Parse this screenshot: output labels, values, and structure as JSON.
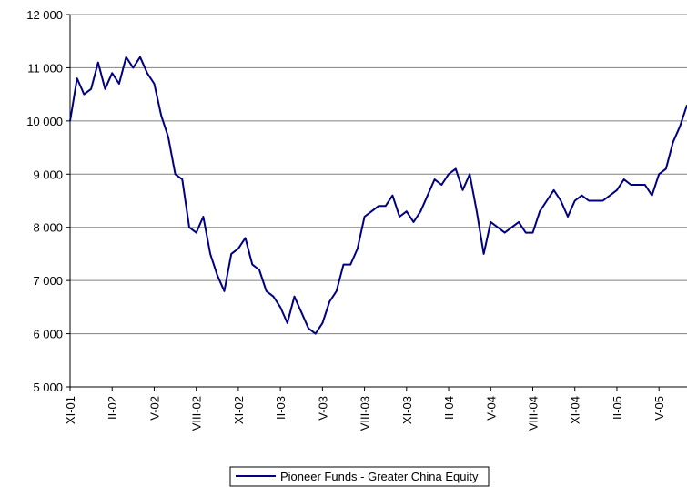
{
  "chart_data": {
    "type": "line",
    "categories": [
      "XI-01",
      null,
      null,
      null,
      null,
      null,
      "II-02",
      null,
      null,
      null,
      null,
      null,
      "V-02",
      null,
      null,
      null,
      null,
      null,
      "VIII-02",
      null,
      null,
      null,
      null,
      null,
      "XI-02",
      null,
      null,
      null,
      null,
      null,
      "II-03",
      null,
      null,
      null,
      null,
      null,
      "V-03",
      null,
      null,
      null,
      null,
      null,
      "VIII-03",
      null,
      null,
      null,
      null,
      null,
      "XI-03",
      null,
      null,
      null,
      null,
      null,
      "II-04",
      null,
      null,
      null,
      null,
      null,
      "V-04",
      null,
      null,
      null,
      null,
      null,
      "VIII-04",
      null,
      null,
      null,
      null,
      null,
      "XI-04",
      null,
      null,
      null,
      null,
      null,
      "II-05",
      null,
      null,
      null,
      null,
      null,
      "V-05",
      null,
      null,
      null,
      null
    ],
    "series": [
      {
        "name": "Pioneer Funds - Greater China Equity",
        "color": "#000080",
        "values": [
          10000,
          10800,
          10500,
          10600,
          11100,
          10600,
          10900,
          10700,
          11200,
          11000,
          11200,
          10900,
          10700,
          10100,
          9700,
          9000,
          8900,
          8000,
          7900,
          8200,
          7500,
          7100,
          6800,
          7500,
          7600,
          7800,
          7300,
          7200,
          6800,
          6700,
          6500,
          6200,
          6700,
          6400,
          6100,
          6000,
          6200,
          6600,
          6800,
          7300,
          7300,
          7600,
          8200,
          8300,
          8400,
          8400,
          8600,
          8200,
          8300,
          8100,
          8300,
          8600,
          8900,
          8800,
          9000,
          9100,
          8700,
          9000,
          8300,
          7500,
          8100,
          8000,
          7900,
          8000,
          8100,
          7900,
          7900,
          8300,
          8500,
          8700,
          8500,
          8200,
          8500,
          8600,
          8500,
          8500,
          8500,
          8600,
          8700,
          8900,
          8800,
          8800,
          8800,
          8600,
          9000,
          9100,
          9600,
          9900,
          10300
        ]
      }
    ],
    "ylim": [
      5000,
      12000
    ],
    "yticks": [
      {
        "value": 5000,
        "label": "5 000"
      },
      {
        "value": 6000,
        "label": "6 000"
      },
      {
        "value": 7000,
        "label": "7 000"
      },
      {
        "value": 8000,
        "label": "8 000"
      },
      {
        "value": 9000,
        "label": "9 000"
      },
      {
        "value": 10000,
        "label": "10 000"
      },
      {
        "value": 11000,
        "label": "11 000"
      },
      {
        "value": 12000,
        "label": "12 000"
      }
    ],
    "grid": true,
    "legend": "bottom"
  }
}
